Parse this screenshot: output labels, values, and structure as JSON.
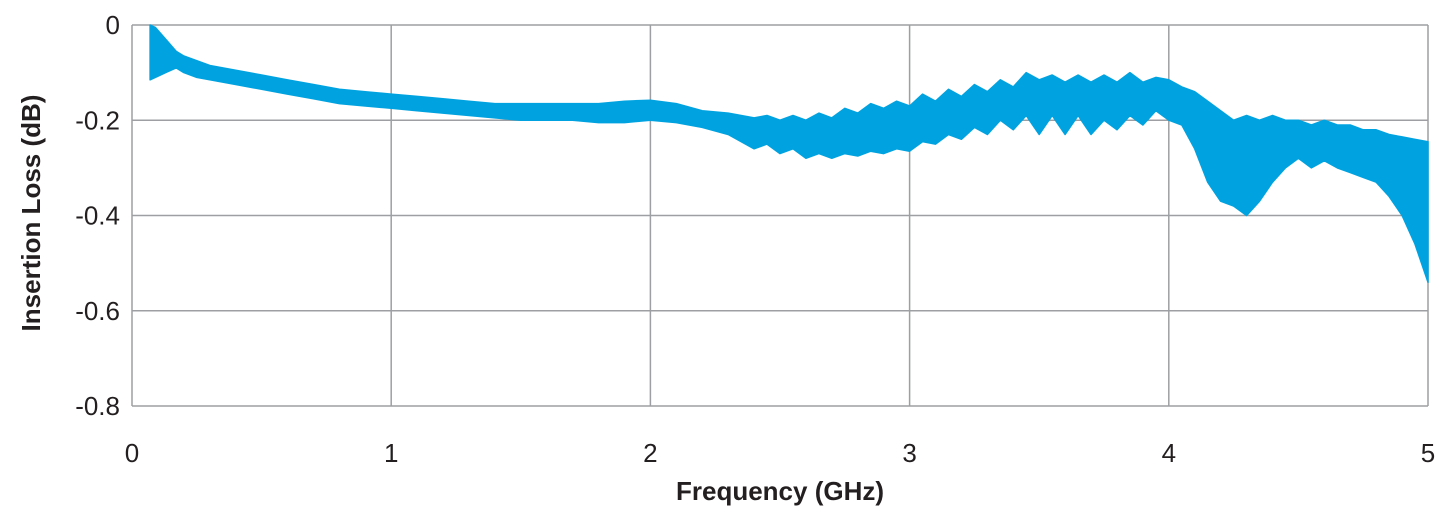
{
  "chart_data": {
    "type": "area",
    "title": "",
    "xlabel": "Frequency (GHz)",
    "ylabel": "Insertion Loss (dB)",
    "xlim": [
      0,
      5
    ],
    "ylim": [
      -0.8,
      0
    ],
    "x_ticks": [
      "0",
      "1",
      "2",
      "3",
      "4",
      "5"
    ],
    "y_ticks": [
      "0",
      "-0.2",
      "-0.4",
      "-0.6",
      "-0.8"
    ],
    "grid": true,
    "legend": "none",
    "fill_color": "#00a3e0",
    "grid_color": "#9d9fa2",
    "series": [
      {
        "x": [
          0.07,
          0.09,
          0.13,
          0.17,
          0.2,
          0.25,
          0.3,
          0.4,
          0.5,
          0.6,
          0.7,
          0.8,
          0.9,
          1.0,
          1.1,
          1.2,
          1.3,
          1.4,
          1.5,
          1.6,
          1.7,
          1.8,
          1.9,
          2.0,
          2.1,
          2.2,
          2.3,
          2.4,
          2.45,
          2.5,
          2.55,
          2.6,
          2.65,
          2.7,
          2.75,
          2.8,
          2.85,
          2.9,
          2.95,
          3.0,
          3.05,
          3.1,
          3.15,
          3.2,
          3.25,
          3.3,
          3.35,
          3.4,
          3.45,
          3.5,
          3.55,
          3.6,
          3.65,
          3.7,
          3.75,
          3.8,
          3.85,
          3.9,
          3.95,
          4.0,
          4.05,
          4.1,
          4.15,
          4.2,
          4.25,
          4.3,
          4.35,
          4.4,
          4.45,
          4.5,
          4.55,
          4.6,
          4.65,
          4.7,
          4.75,
          4.8,
          4.85,
          4.9,
          4.95,
          5.0
        ],
        "upper": [
          0.0,
          -0.005,
          -0.03,
          -0.055,
          -0.065,
          -0.075,
          -0.085,
          -0.095,
          -0.105,
          -0.115,
          -0.125,
          -0.135,
          -0.14,
          -0.145,
          -0.15,
          -0.155,
          -0.16,
          -0.165,
          -0.165,
          -0.165,
          -0.165,
          -0.165,
          -0.16,
          -0.158,
          -0.165,
          -0.18,
          -0.185,
          -0.195,
          -0.19,
          -0.2,
          -0.19,
          -0.2,
          -0.185,
          -0.195,
          -0.175,
          -0.185,
          -0.165,
          -0.175,
          -0.16,
          -0.17,
          -0.145,
          -0.16,
          -0.135,
          -0.15,
          -0.125,
          -0.14,
          -0.115,
          -0.13,
          -0.1,
          -0.115,
          -0.105,
          -0.12,
          -0.105,
          -0.12,
          -0.105,
          -0.12,
          -0.1,
          -0.12,
          -0.11,
          -0.115,
          -0.13,
          -0.14,
          -0.16,
          -0.18,
          -0.2,
          -0.19,
          -0.2,
          -0.19,
          -0.2,
          -0.2,
          -0.21,
          -0.2,
          -0.21,
          -0.21,
          -0.22,
          -0.22,
          -0.23,
          -0.235,
          -0.24,
          -0.245
        ],
        "lower": [
          -0.115,
          -0.11,
          -0.1,
          -0.09,
          -0.1,
          -0.11,
          -0.115,
          -0.125,
          -0.135,
          -0.145,
          -0.155,
          -0.165,
          -0.17,
          -0.175,
          -0.18,
          -0.185,
          -0.19,
          -0.195,
          -0.2,
          -0.2,
          -0.2,
          -0.205,
          -0.205,
          -0.2,
          -0.205,
          -0.215,
          -0.23,
          -0.26,
          -0.25,
          -0.27,
          -0.26,
          -0.28,
          -0.27,
          -0.28,
          -0.27,
          -0.275,
          -0.265,
          -0.27,
          -0.26,
          -0.265,
          -0.245,
          -0.25,
          -0.23,
          -0.24,
          -0.215,
          -0.23,
          -0.2,
          -0.22,
          -0.19,
          -0.23,
          -0.19,
          -0.23,
          -0.19,
          -0.23,
          -0.2,
          -0.22,
          -0.19,
          -0.21,
          -0.18,
          -0.2,
          -0.21,
          -0.26,
          -0.33,
          -0.37,
          -0.38,
          -0.4,
          -0.37,
          -0.33,
          -0.3,
          -0.28,
          -0.3,
          -0.285,
          -0.3,
          -0.31,
          -0.32,
          -0.33,
          -0.36,
          -0.4,
          -0.46,
          -0.54
        ]
      }
    ]
  }
}
